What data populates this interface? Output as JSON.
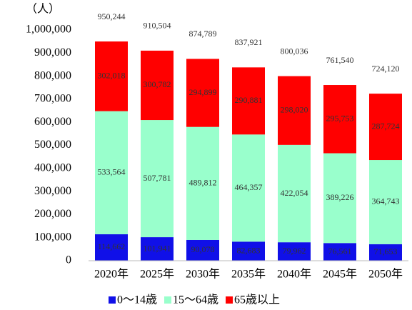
{
  "chart_data": {
    "type": "stacked_bar",
    "y_axis_label": "（人）",
    "categories": [
      "2020年",
      "2025年",
      "2030年",
      "2035年",
      "2040年",
      "2045年",
      "2050年"
    ],
    "series": [
      {
        "name": "0〜14歳",
        "color": "#1010e8",
        "values": [
          114662,
          101941,
          90078,
          82683,
          79962,
          76561,
          71653
        ],
        "value_labels": [
          "114,662",
          "101,941",
          "90,078",
          "82,683",
          "79,962",
          "76,561",
          "71,653"
        ]
      },
      {
        "name": "15〜64歳",
        "color": "#99ffcc",
        "values": [
          533564,
          507781,
          489812,
          464357,
          422054,
          389226,
          364743
        ],
        "value_labels": [
          "533,564",
          "507,781",
          "489,812",
          "464,357",
          "422,054",
          "389,226",
          "364,743"
        ]
      },
      {
        "name": "65歳以上",
        "color": "#ff0000",
        "values": [
          302018,
          300782,
          294899,
          290881,
          298020,
          295753,
          287724
        ],
        "value_labels": [
          "302,018",
          "300,782",
          "294,899",
          "290,881",
          "298,020",
          "295,753",
          "287,724"
        ]
      }
    ],
    "totals": {
      "values": [
        950244,
        910504,
        874789,
        837921,
        800036,
        761540,
        724120
      ],
      "value_labels": [
        "950,244",
        "910,504",
        "874,789",
        "837,921",
        "800,036",
        "761,540",
        "724,120"
      ]
    },
    "ylim": [
      0,
      1000000
    ],
    "yticks": [
      0,
      {
        "value": 100000,
        "label": "100,000"
      },
      {
        "value": 200000,
        "label": "200,000"
      },
      {
        "value": 300000,
        "label": "300,000"
      },
      {
        "value": 400000,
        "label": "400,000"
      },
      {
        "value": 500000,
        "label": "500,000"
      },
      {
        "value": 600000,
        "label": "600,000"
      },
      {
        "value": 700000,
        "label": "700,000"
      },
      {
        "value": 800000,
        "label": "800,000"
      },
      {
        "value": 900000,
        "label": "900,000"
      },
      {
        "value": 1000000,
        "label": "1,000,000"
      }
    ],
    "grid": false,
    "legend": "bottom"
  }
}
